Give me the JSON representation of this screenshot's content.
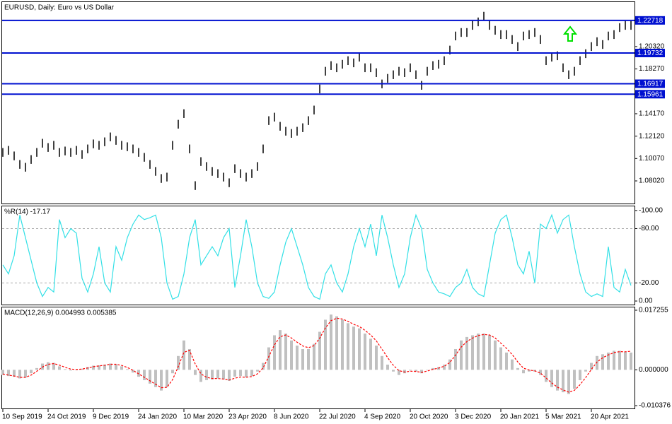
{
  "chart_data": [
    {
      "type": "hilo",
      "title": "EURUSD, Daily:  Euro vs US Dollar",
      "color": "#000000",
      "high": [
        1.1103,
        1.1122,
        1.1071,
        1.0993,
        1.0967,
        1.1038,
        1.1103,
        1.1187,
        1.1148,
        1.1168,
        1.1103,
        1.1116,
        1.1103,
        1.1122,
        1.1084,
        1.1135,
        1.1181,
        1.1168,
        1.12,
        1.1245,
        1.1213,
        1.1168,
        1.1155,
        1.1135,
        1.1103,
        1.1058,
        1.0993,
        1.0929,
        1.0864,
        1.0877,
        1.1168,
        1.1361,
        1.1458,
        1.1135,
        1.0799,
        1.1019,
        1.0974,
        1.0929,
        1.0909,
        1.0877,
        1.0825,
        1.0954,
        1.0909,
        1.0877,
        1.0909,
        1.0974,
        1.1135,
        1.1394,
        1.1426,
        1.1342,
        1.1297,
        1.1277,
        1.1297,
        1.1329,
        1.1394,
        1.1491,
        1.1684,
        1.1846,
        1.1898,
        1.1878,
        1.191,
        1.1943,
        1.1923,
        1.1975,
        1.1878,
        1.1878,
        1.1833,
        1.173,
        1.1781,
        1.1814,
        1.1846,
        1.1833,
        1.1878,
        1.1814,
        1.1717,
        1.1846,
        1.1898,
        1.191,
        1.1943,
        1.204,
        1.2169,
        1.2201,
        1.2201,
        1.2266,
        1.2298,
        1.235,
        1.2266,
        1.2221,
        1.2182,
        1.2182,
        1.2137,
        1.2072,
        1.2169,
        1.2182,
        1.2201,
        1.2137,
        1.1943,
        1.1975,
        1.1988,
        1.1878,
        1.1814,
        1.1846,
        1.1943,
        1.2007,
        1.2072,
        1.2117,
        1.2091,
        1.2169,
        1.2182,
        1.2246,
        1.2266,
        1.2266
      ],
      "low": [
        1.1023,
        1.1042,
        1.0991,
        1.0913,
        1.0887,
        1.0958,
        1.1023,
        1.1107,
        1.1068,
        1.1088,
        1.1023,
        1.1036,
        1.1023,
        1.1042,
        1.1004,
        1.1055,
        1.1101,
        1.1088,
        1.112,
        1.1165,
        1.1133,
        1.1088,
        1.1075,
        1.1055,
        1.1023,
        1.0978,
        1.0913,
        1.0849,
        1.0784,
        1.0797,
        1.1088,
        1.1281,
        1.1378,
        1.1055,
        1.0719,
        1.0939,
        1.0894,
        1.0849,
        1.0829,
        1.0797,
        1.0745,
        1.0874,
        1.0829,
        1.0797,
        1.0829,
        1.0894,
        1.1055,
        1.1314,
        1.1346,
        1.1262,
        1.1217,
        1.1197,
        1.1217,
        1.1249,
        1.1314,
        1.1411,
        1.1604,
        1.1766,
        1.1818,
        1.1798,
        1.183,
        1.1863,
        1.1843,
        1.1895,
        1.1798,
        1.1798,
        1.1753,
        1.165,
        1.1701,
        1.1734,
        1.1766,
        1.1753,
        1.1798,
        1.1734,
        1.1637,
        1.1766,
        1.1818,
        1.183,
        1.1863,
        1.196,
        1.2089,
        1.2121,
        1.2121,
        1.2186,
        1.2218,
        1.227,
        1.2186,
        1.2141,
        1.2102,
        1.2102,
        1.2057,
        1.1992,
        1.2089,
        1.2102,
        1.2121,
        1.2057,
        1.1863,
        1.1895,
        1.1908,
        1.1798,
        1.1734,
        1.1766,
        1.1863,
        1.1927,
        1.1992,
        1.2037,
        1.2011,
        1.2089,
        1.2102,
        1.2166,
        1.2186,
        1.2186
      ],
      "ylim": [
        1.0595,
        1.2439
      ],
      "yticks": [
        {
          "value": 1.0802,
          "label": "1.08020"
        },
        {
          "value": 1.1007,
          "label": "1.10070"
        },
        {
          "value": 1.1212,
          "label": "1.12120"
        },
        {
          "value": 1.1417,
          "label": "1.14170"
        },
        {
          "value": 1.1827,
          "label": "1.18270"
        },
        {
          "value": 1.2032,
          "label": "1.20320"
        }
      ],
      "levels": {
        "values": [
          1.22718,
          1.19732,
          1.16917,
          1.15961
        ],
        "color": "#0010d0"
      }
    },
    {
      "type": "line",
      "title": "%R(14) -17.17",
      "color": "#33e0e6",
      "values": [
        -40,
        -30,
        -50,
        -95,
        -70,
        -45,
        -20,
        -5,
        -15,
        -10,
        -90,
        -70,
        -80,
        -75,
        -25,
        -10,
        -30,
        -60,
        -20,
        -10,
        -60,
        -45,
        -70,
        -85,
        -95,
        -90,
        -92,
        -95,
        -70,
        -20,
        -2,
        -5,
        -30,
        -70,
        -90,
        -40,
        -50,
        -60,
        -50,
        -70,
        -80,
        -15,
        -50,
        -90,
        -60,
        -20,
        -5,
        -3,
        -10,
        -40,
        -65,
        -80,
        -60,
        -40,
        -15,
        -5,
        -2,
        -30,
        -40,
        -20,
        -10,
        -30,
        -60,
        -80,
        -60,
        -85,
        -50,
        -95,
        -70,
        -40,
        -15,
        -30,
        -70,
        -95,
        -80,
        -35,
        -20,
        -10,
        -8,
        -5,
        -15,
        -20,
        -35,
        -15,
        -8,
        -5,
        -40,
        -75,
        -90,
        -95,
        -70,
        -40,
        -30,
        -55,
        -20,
        -85,
        -80,
        -95,
        -75,
        -90,
        -95,
        -60,
        -30,
        -10,
        -5,
        -8,
        -5,
        -60,
        -15,
        -10,
        -35,
        -17.17
      ],
      "ylim": [
        3.9,
        -104.6
      ],
      "yticks": [
        {
          "value": 0,
          "label": "0.00"
        },
        {
          "value": -20,
          "label": "-20.00"
        },
        {
          "value": -80,
          "label": "-80.00"
        },
        {
          "value": -100,
          "label": "-100.00"
        }
      ],
      "levels": [
        -20,
        -80
      ]
    },
    {
      "type": "macd",
      "title": "MACD(12,26,9) 0.004993 0.005385",
      "histogram": {
        "color": "#c0c0c0",
        "values": [
          -0.0015,
          -0.0018,
          -0.002,
          -0.0025,
          -0.0022,
          -0.001,
          0.0005,
          0.0018,
          0.0022,
          0.002,
          0.001,
          0.0002,
          -0.0002,
          0,
          0.0003,
          0.0008,
          0.0012,
          0.0013,
          0.0015,
          0.0018,
          0.0016,
          0.001,
          0.0002,
          -0.0008,
          -0.002,
          -0.003,
          -0.004,
          -0.005,
          -0.006,
          -0.005,
          -0.001,
          0.004,
          0.0085,
          0.006,
          -0.0015,
          -0.0035,
          -0.003,
          -0.0028,
          -0.0025,
          -0.0028,
          -0.0032,
          -0.002,
          -0.0018,
          -0.0022,
          -0.0018,
          -0.0005,
          0.002,
          0.0065,
          0.01,
          0.0115,
          0.0105,
          0.0085,
          0.007,
          0.006,
          0.006,
          0.0075,
          0.011,
          0.0145,
          0.016,
          0.0155,
          0.0145,
          0.0135,
          0.0125,
          0.012,
          0.0105,
          0.009,
          0.007,
          0.004,
          0.0015,
          -0.0005,
          -0.0015,
          -0.001,
          -0.0002,
          -0.0005,
          -0.001,
          0,
          0.0005,
          0.0008,
          0.0015,
          0.003,
          0.006,
          0.0085,
          0.0095,
          0.01,
          0.0105,
          0.0105,
          0.01,
          0.0085,
          0.0065,
          0.005,
          0.003,
          0.0005,
          -0.001,
          -0.0005,
          -0.0005,
          -0.0015,
          -0.0035,
          -0.005,
          -0.006,
          -0.0065,
          -0.007,
          -0.0055,
          -0.003,
          -0.0005,
          0.002,
          0.004,
          0.0045,
          0.005,
          0.0055,
          0.0055,
          0.0052,
          0.004993
        ]
      },
      "signal": {
        "color": "#ff0000",
        "values": [
          -0.0012,
          -0.00153,
          -0.00179,
          -0.00218,
          -0.00219,
          -0.00154,
          -0.00042,
          0.0008,
          0.00157,
          0.00181,
          0.00136,
          0.00072,
          0.00021,
          9e-05,
          0.00021,
          0.00053,
          0.0009,
          0.00112,
          0.00133,
          0.00159,
          0.0016,
          0.00127,
          0.00068,
          -0.00013,
          -0.00116,
          -0.00217,
          -0.00318,
          -0.00418,
          -0.00518,
          -0.00508,
          -0.00284,
          0.00092,
          0.00509,
          0.00559,
          0.00169,
          -0.00116,
          -0.00217,
          -0.00252,
          -0.00251,
          -0.00267,
          -0.00296,
          -0.00243,
          -0.00208,
          -0.00215,
          -0.00196,
          -0.00116,
          0.00058,
          0.00384,
          0.00723,
          0.00958,
          0.01009,
          0.00922,
          0.008,
          0.0069,
          0.00641,
          0.00701,
          0.0092,
          0.01212,
          0.01425,
          0.01494,
          0.0147,
          0.01404,
          0.01319,
          0.01254,
          0.01142,
          0.01009,
          0.00839,
          0.00598,
          0.00352,
          0.00131,
          -0.00024,
          -0.00066,
          -0.00041,
          -0.00046,
          -0.00076,
          -0.00034,
          0.00012,
          0.00049,
          0.00105,
          0.00212,
          0.00425,
          0.00659,
          0.00819,
          0.00919,
          0.00991,
          0.01023,
          0.0101,
          0.00922,
          0.00772,
          0.00622,
          0.00445,
          0.00228,
          0.00048,
          -6e-05,
          -0.0003,
          -0.00096,
          -0.00236,
          -0.00381,
          -0.00501,
          -0.00583,
          -0.00647,
          -0.00594,
          -0.00432,
          -0.00222,
          0.0001,
          0.00225,
          0.00349,
          0.00432,
          0.00497,
          0.00526,
          0.00523,
          0.005385
        ]
      },
      "ylim": [
        -0.011188,
        0.01807
      ],
      "yticks": [
        0.017255,
        {
          "value": 0,
          "label": "0.000000"
        },
        -0.010376
      ],
      "categories": [
        "10 Sep 2019",
        null,
        null,
        null,
        null,
        null,
        null,
        null,
        "24 Oct 2019",
        null,
        null,
        null,
        null,
        null,
        null,
        null,
        "9 Dec 2019",
        null,
        null,
        null,
        null,
        null,
        null,
        null,
        "24 Jan 2020",
        null,
        null,
        null,
        null,
        null,
        null,
        null,
        "10 Mar 2020",
        null,
        null,
        null,
        null,
        null,
        null,
        null,
        "23 Apr 2020",
        null,
        null,
        null,
        null,
        null,
        null,
        null,
        "8 Jun 2020",
        null,
        null,
        null,
        null,
        null,
        null,
        null,
        "22 Jul 2020",
        null,
        null,
        null,
        null,
        null,
        null,
        null,
        "4 Sep 2020",
        null,
        null,
        null,
        null,
        null,
        null,
        null,
        "20 Oct 2020",
        null,
        null,
        null,
        null,
        null,
        null,
        null,
        "3 Dec 2020",
        null,
        null,
        null,
        null,
        null,
        null,
        null,
        "20 Jan 2021",
        null,
        null,
        null,
        null,
        null,
        null,
        null,
        "5 Mar 2021",
        null,
        null,
        null,
        null,
        null,
        null,
        null,
        "20 Apr 2021",
        null,
        null,
        null,
        null,
        null,
        null,
        null
      ]
    }
  ]
}
